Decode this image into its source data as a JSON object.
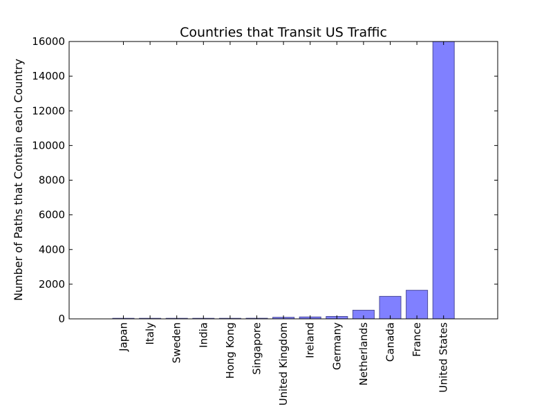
{
  "chart_data": {
    "type": "bar",
    "title": "Countries that Transit US Traffic",
    "xlabel": "",
    "ylabel": "Number of Paths that Contain each Country",
    "categories": [
      "Japan",
      "Italy",
      "Sweden",
      "India",
      "Hong Kong",
      "Singapore",
      "United Kingdom",
      "Ireland",
      "Germany",
      "Netherlands",
      "Canada",
      "France",
      "United States"
    ],
    "values": [
      3,
      5,
      8,
      10,
      25,
      35,
      90,
      110,
      140,
      500,
      1300,
      1650,
      16000
    ],
    "ylim": [
      0,
      16000
    ],
    "yticks": [
      "0",
      "2000",
      "4000",
      "6000",
      "8000",
      "10000",
      "12000",
      "14000",
      "16000"
    ],
    "grid": false,
    "bar_color": "#8080ff",
    "bar_edge_color": "#4d4d99"
  }
}
